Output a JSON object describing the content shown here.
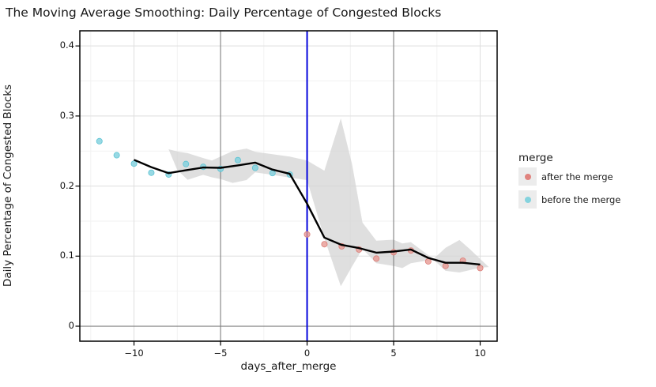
{
  "title": "The Moving Average Smoothing: Daily Percentage of Congested Blocks",
  "chart_data": {
    "type": "line",
    "title": "The Moving Average Smoothing: Daily Percentage of Congested Blocks",
    "xlabel": "days_after_merge",
    "ylabel": "Daily Percentage of Congested Blocks",
    "xlim": [
      -13.13,
      10.98
    ],
    "ylim": [
      -0.0214,
      0.4216
    ],
    "xticks": [
      -10,
      -5,
      0,
      5,
      10
    ],
    "xtick_labels": [
      "−10",
      "−5",
      "0",
      "5",
      "10"
    ],
    "yticks": [
      0,
      0.1,
      0.2,
      0.3,
      0.4
    ],
    "ytick_labels": [
      "0",
      "0.1",
      "0.2",
      "0.3",
      "0.4"
    ],
    "grid": {
      "x_major": [
        -10,
        10
      ],
      "x_minor": [
        -12.5,
        -7.5,
        -2.5,
        2.5,
        7.5
      ],
      "y_major": [
        0.1,
        0.2,
        0.3,
        0.4
      ],
      "y_minor": [
        0.05,
        0.15,
        0.25,
        0.35
      ],
      "major_color": "#dedede",
      "minor_color": "#f2f2f2"
    },
    "annotations": {
      "merge_line_x": 0,
      "merge_line_color": "#0404dd",
      "week_ref_lines_x": [
        -5,
        5
      ],
      "zero_line_y": 0,
      "ref_line_color": "#808080"
    },
    "series": [
      {
        "name": "moving average band",
        "type": "area",
        "color": "#d4d4d4",
        "opacity": 0.75,
        "points_x": [
          -8.0,
          -7.5,
          -6.9,
          -6.0,
          -5.5,
          -5.0,
          -4.3,
          -3.5,
          -3.0,
          -2.0,
          -1.0,
          0.0,
          1.0,
          1.95,
          2.6,
          3.2,
          4.0,
          5.0,
          5.5,
          6.0,
          7.3,
          8.0,
          8.8,
          9.4,
          10.0,
          10.5
        ],
        "points_lo": [
          0.2525,
          0.223,
          0.209,
          0.216,
          0.2125,
          0.21,
          0.2045,
          0.2085,
          0.2195,
          0.216,
          0.212,
          0.2085,
          0.1255,
          0.057,
          0.0855,
          0.1105,
          0.09,
          0.086,
          0.083,
          0.09,
          0.0952,
          0.079,
          0.0767,
          0.08,
          0.0835,
          0.0845
        ],
        "points_hi": [
          0.2525,
          0.2495,
          0.247,
          0.24,
          0.2365,
          0.242,
          0.25,
          0.2535,
          0.249,
          0.2455,
          0.242,
          0.2365,
          0.222,
          0.2965,
          0.231,
          0.148,
          0.122,
          0.1235,
          0.118,
          0.12,
          0.0958,
          0.112,
          0.123,
          0.11,
          0.096,
          0.0845
        ]
      },
      {
        "name": "before the merge",
        "type": "scatter",
        "color": "#7ed0dd",
        "edge_color": "#5cc3d3",
        "x": [
          -12,
          -11,
          -10,
          -9,
          -8,
          -7,
          -6,
          -5,
          -4,
          -3,
          -2,
          -1
        ],
        "y": [
          0.264,
          0.244,
          0.232,
          0.219,
          0.2165,
          0.2315,
          0.2275,
          0.2245,
          0.237,
          0.226,
          0.2185,
          0.2165
        ]
      },
      {
        "name": "after the merge",
        "type": "scatter",
        "color": "#e79a94",
        "edge_color": "#db7d77",
        "x": [
          0,
          1,
          2,
          3,
          4,
          5,
          6,
          7,
          8,
          9,
          10
        ],
        "y": [
          0.131,
          0.117,
          0.114,
          0.1095,
          0.0965,
          0.1055,
          0.108,
          0.0925,
          0.086,
          0.0935,
          0.083
        ]
      },
      {
        "name": "moving average",
        "type": "line",
        "color": "#000000",
        "width": 2.4,
        "x": [
          -10,
          -9,
          -8,
          -7,
          -6,
          -5,
          -4,
          -3,
          -2,
          -1,
          0,
          1,
          2,
          3,
          4,
          5,
          6,
          7,
          8,
          9,
          10
        ],
        "y": [
          0.2375,
          0.227,
          0.2185,
          0.2225,
          0.2265,
          0.226,
          0.2295,
          0.2335,
          0.2235,
          0.2175,
          0.175,
          0.1265,
          0.116,
          0.1115,
          0.105,
          0.1065,
          0.1095,
          0.0975,
          0.0905,
          0.0905,
          0.088
        ]
      }
    ],
    "legend": {
      "title": "merge",
      "position": "right",
      "entries": [
        {
          "label": "after the merge",
          "color": "#e0837e"
        },
        {
          "label": "before the merge",
          "color": "#85d3de"
        }
      ]
    }
  }
}
